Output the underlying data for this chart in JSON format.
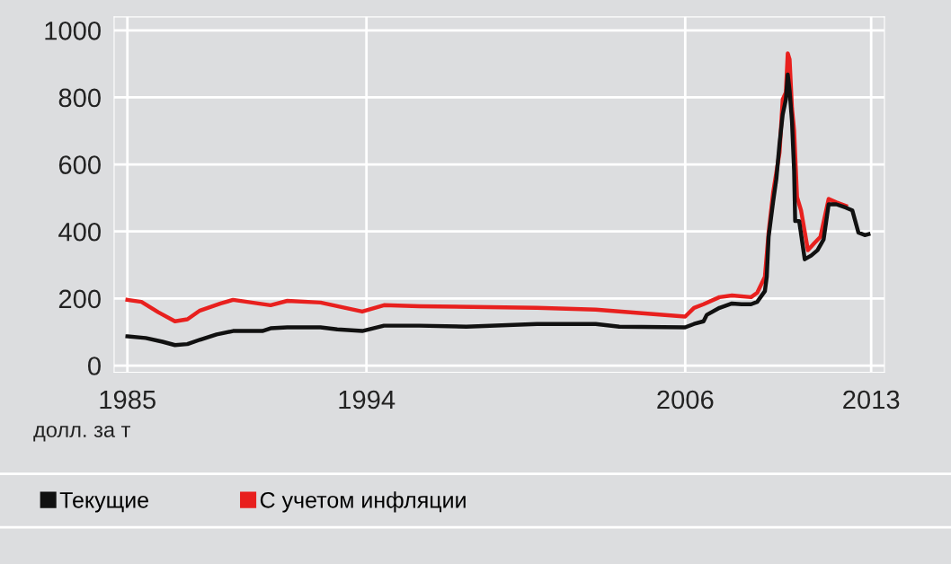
{
  "chart_data": {
    "type": "line",
    "ylabel": "долл. за т",
    "xlim": [
      1984.5,
      2013.5
    ],
    "xticks": [
      1985,
      1994,
      2006,
      2013
    ],
    "ylim": [
      -20,
      1040
    ],
    "yticks": [
      0,
      200,
      400,
      600,
      800,
      1000
    ],
    "grid": true,
    "legend": "bottom",
    "line_style": "solid",
    "marker": "none",
    "series": [
      {
        "name": "Текущие",
        "color": "#111111",
        "x": [
          1985.0,
          1985.69,
          1986.32,
          1986.79,
          1987.26,
          1987.73,
          1988.36,
          1988.98,
          1990.08,
          1990.39,
          1991.02,
          1992.27,
          1992.9,
          1993.84,
          1994.66,
          1995.99,
          1997.76,
          2000.42,
          2002.63,
          2003.52,
          2006.0,
          2006.33,
          2006.69,
          2006.81,
          2007.29,
          2007.76,
          2008.12,
          2008.48,
          2008.71,
          2009.0,
          2009.07,
          2009.14,
          2009.31,
          2009.43,
          2009.55,
          2009.67,
          2009.79,
          2009.86,
          2009.93,
          2010.02,
          2010.1,
          2010.14,
          2010.29,
          2010.5,
          2010.74,
          2010.98,
          2011.21,
          2011.4,
          2011.69,
          2012.05,
          2012.29,
          2012.52,
          2012.76,
          2012.9
        ],
        "values": [
          87,
          82,
          71,
          61,
          64,
          77,
          93,
          103,
          103,
          111,
          114,
          114,
          108,
          103,
          119,
          119,
          116,
          124,
          124,
          116,
          114,
          124,
          132,
          151,
          172,
          185,
          183,
          183,
          190,
          222,
          265,
          384,
          489,
          556,
          661,
          749,
          794,
          868,
          820,
          728,
          582,
          431,
          431,
          317,
          328,
          344,
          376,
          481,
          481,
          471,
          463,
          397,
          389,
          392
        ]
      },
      {
        "name": "С учетом инфляции",
        "color": "#e8201e",
        "x": [
          1985.0,
          1985.53,
          1986.16,
          1986.79,
          1987.26,
          1987.73,
          1988.51,
          1988.98,
          1990.39,
          1991.02,
          1992.27,
          1993.84,
          1994.66,
          1995.99,
          2000.42,
          2002.63,
          2006.0,
          2006.33,
          2006.69,
          2007.29,
          2007.76,
          2008.48,
          2008.71,
          2009.0,
          2009.14,
          2009.31,
          2009.55,
          2009.67,
          2009.79,
          2009.86,
          2009.93,
          2010.02,
          2010.1,
          2010.21,
          2010.36,
          2010.62,
          2010.86,
          2011.09,
          2011.4,
          2011.69,
          2012.05
        ],
        "values": [
          196,
          190,
          159,
          132,
          138,
          164,
          185,
          196,
          180,
          193,
          188,
          161,
          180,
          177,
          172,
          167,
          146,
          172,
          183,
          204,
          209,
          204,
          217,
          265,
          397,
          516,
          635,
          794,
          815,
          931,
          913,
          767,
          701,
          503,
          463,
          344,
          365,
          384,
          497,
          487,
          476
        ]
      }
    ]
  }
}
